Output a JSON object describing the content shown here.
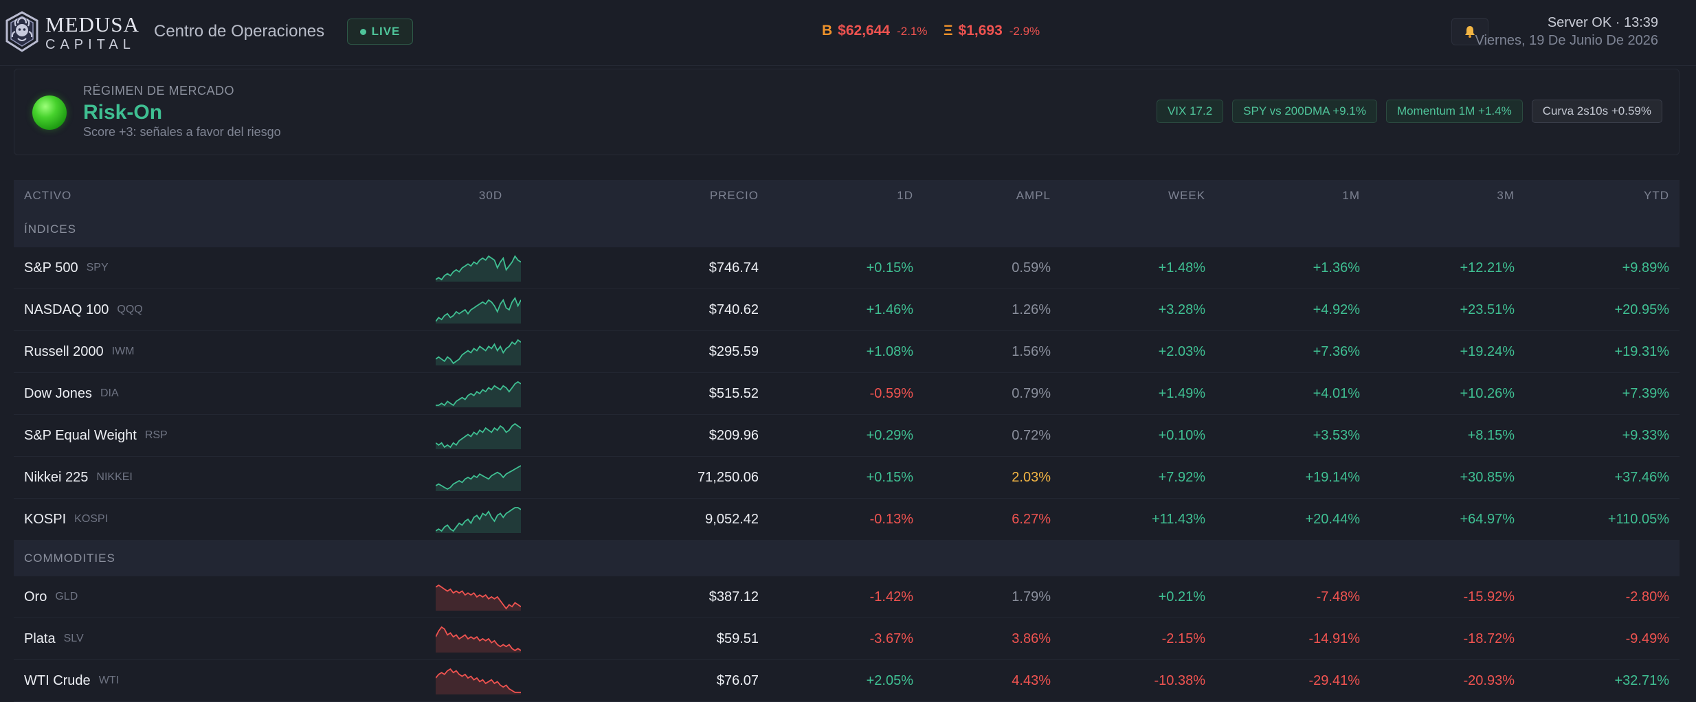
{
  "header": {
    "brand_name": "MEDUSA",
    "brand_sub": "CAPITAL",
    "title": "Centro de Operaciones",
    "live_label": "LIVE",
    "crypto": [
      {
        "symbol": "B",
        "price": "$62,644",
        "change": "-2.1%"
      },
      {
        "symbol": "Ξ",
        "price": "$1,693",
        "change": "-2.9%"
      }
    ],
    "bell_icon": "🔔",
    "server_status": "Server OK · 13:39",
    "date": "Viernes, 19 De Junio De 2026"
  },
  "regime": {
    "label": "RÉGIMEN DE MERCADO",
    "value": "Risk-On",
    "score": "Score +3: señales a favor del riesgo",
    "pills": [
      {
        "text": "VIX 17.2",
        "tone": "green"
      },
      {
        "text": "SPY vs 200DMA +9.1%",
        "tone": "green"
      },
      {
        "text": "Momentum 1M +1.4%",
        "tone": "green"
      },
      {
        "text": "Curva 2s10s +0.59%",
        "tone": "neutral"
      }
    ]
  },
  "table": {
    "columns": {
      "activo": "ACTIVO",
      "spark": "30D",
      "precio": "PRECIO",
      "d1": "1D",
      "ampl": "AMPL",
      "week": "WEEK",
      "m1": "1M",
      "m3": "3M",
      "ytd": "YTD"
    },
    "sections": [
      {
        "title": "ÍNDICES",
        "rows": [
          {
            "name": "S&P 500",
            "ticker": "SPY",
            "price": "$746.74",
            "d1": "+0.15%",
            "ampl": "0.59%",
            "week": "+1.48%",
            "m1": "+1.36%",
            "m3": "+12.21%",
            "ytd": "+9.89%",
            "trend": "up",
            "spark": [
              3,
              4,
              3,
              5,
              6,
              5,
              7,
              8,
              7,
              9,
              10,
              11,
              10,
              12,
              11,
              13,
              14,
              13,
              15,
              14,
              13,
              9,
              12,
              14,
              8,
              10,
              12,
              15,
              13,
              12
            ]
          },
          {
            "name": "NASDAQ 100",
            "ticker": "QQQ",
            "price": "$740.62",
            "d1": "+1.46%",
            "ampl": "1.26%",
            "week": "+3.28%",
            "m1": "+4.92%",
            "m3": "+23.51%",
            "ytd": "+20.95%",
            "trend": "up",
            "spark": [
              3,
              5,
              4,
              6,
              7,
              5,
              6,
              8,
              7,
              8,
              9,
              7,
              9,
              10,
              11,
              12,
              13,
              12,
              14,
              13,
              11,
              8,
              12,
              14,
              10,
              9,
              13,
              15,
              11,
              14
            ]
          },
          {
            "name": "Russell 2000",
            "ticker": "IWM",
            "price": "$295.59",
            "d1": "+1.08%",
            "ampl": "1.56%",
            "week": "+2.03%",
            "m1": "+7.36%",
            "m3": "+19.24%",
            "ytd": "+19.31%",
            "trend": "up",
            "spark": [
              6,
              7,
              6,
              5,
              7,
              6,
              4,
              5,
              6,
              8,
              9,
              10,
              9,
              11,
              10,
              12,
              11,
              10,
              12,
              11,
              13,
              10,
              12,
              9,
              11,
              12,
              14,
              13,
              15,
              14
            ]
          },
          {
            "name": "Dow Jones",
            "ticker": "DIA",
            "price": "$515.52",
            "d1": "-0.59%",
            "ampl": "0.79%",
            "week": "+1.49%",
            "m1": "+4.01%",
            "m3": "+10.26%",
            "ytd": "+7.39%",
            "trend": "up",
            "spark": [
              3,
              3,
              4,
              3,
              5,
              4,
              3,
              5,
              6,
              7,
              6,
              8,
              9,
              8,
              10,
              9,
              11,
              10,
              12,
              11,
              13,
              12,
              11,
              13,
              12,
              10,
              12,
              14,
              15,
              14
            ]
          },
          {
            "name": "S&P Equal Weight",
            "ticker": "RSP",
            "price": "$209.96",
            "d1": "+0.29%",
            "ampl": "0.72%",
            "week": "+0.10%",
            "m1": "+3.53%",
            "m3": "+8.15%",
            "ytd": "+9.33%",
            "trend": "up",
            "spark": [
              6,
              5,
              6,
              4,
              5,
              4,
              6,
              5,
              7,
              8,
              9,
              10,
              9,
              11,
              10,
              12,
              11,
              13,
              12,
              11,
              13,
              12,
              14,
              13,
              11,
              12,
              14,
              15,
              14,
              13
            ]
          },
          {
            "name": "Nikkei 225",
            "ticker": "NIKKEI",
            "price": "71,250.06",
            "d1": "+0.15%",
            "ampl": "2.03%",
            "week": "+7.92%",
            "m1": "+19.14%",
            "m3": "+30.85%",
            "ytd": "+37.46%",
            "trend": "up",
            "spark": [
              5,
              6,
              5,
              4,
              3,
              4,
              6,
              7,
              8,
              7,
              9,
              10,
              9,
              11,
              10,
              12,
              11,
              10,
              9,
              11,
              12,
              13,
              12,
              10,
              12,
              13,
              14,
              15,
              16,
              17
            ]
          },
          {
            "name": "KOSPI",
            "ticker": "KOSPI",
            "price": "9,052.42",
            "d1": "-0.13%",
            "ampl": "6.27%",
            "week": "+11.43%",
            "m1": "+20.44%",
            "m3": "+64.97%",
            "ytd": "+110.05%",
            "trend": "up",
            "spark": [
              5,
              6,
              5,
              7,
              8,
              6,
              5,
              7,
              9,
              8,
              10,
              11,
              9,
              12,
              13,
              11,
              14,
              13,
              15,
              12,
              10,
              13,
              14,
              12,
              14,
              15,
              16,
              17,
              17,
              16
            ]
          }
        ]
      },
      {
        "title": "COMMODITIES",
        "rows": [
          {
            "name": "Oro",
            "ticker": "GLD",
            "price": "$387.12",
            "d1": "-1.42%",
            "ampl": "1.79%",
            "week": "+0.21%",
            "m1": "-7.48%",
            "m3": "-15.92%",
            "ytd": "-2.80%",
            "trend": "down",
            "spark": [
              15,
              16,
              15,
              14,
              13,
              14,
              12,
              13,
              12,
              13,
              11,
              12,
              11,
              12,
              10,
              11,
              10,
              11,
              9,
              10,
              9,
              10,
              8,
              6,
              4,
              6,
              5,
              7,
              6,
              5
            ]
          },
          {
            "name": "Plata",
            "ticker": "SLV",
            "price": "$59.51",
            "d1": "-3.67%",
            "ampl": "3.86%",
            "week": "-2.15%",
            "m1": "-14.91%",
            "m3": "-18.72%",
            "ytd": "-9.49%",
            "trend": "down",
            "spark": [
              10,
              13,
              15,
              14,
              11,
              12,
              10,
              11,
              9,
              10,
              11,
              9,
              10,
              9,
              10,
              8,
              9,
              8,
              9,
              7,
              8,
              6,
              5,
              6,
              5,
              6,
              4,
              3,
              4,
              3
            ]
          },
          {
            "name": "WTI Crude",
            "ticker": "WTI",
            "price": "$76.07",
            "d1": "+2.05%",
            "ampl": "4.43%",
            "week": "-10.38%",
            "m1": "-29.41%",
            "m3": "-20.93%",
            "ytd": "+32.71%",
            "trend": "down",
            "spark": [
              10,
              12,
              13,
              12,
              14,
              15,
              13,
              14,
              12,
              11,
              12,
              10,
              11,
              9,
              10,
              8,
              9,
              7,
              8,
              9,
              7,
              8,
              6,
              5,
              6,
              4,
              3,
              2,
              2,
              2
            ]
          }
        ]
      }
    ]
  },
  "colors": {
    "background": "#1b1e27",
    "positive": "#3fbf92",
    "negative": "#ef5350",
    "warning": "#f2b544",
    "bitcoin": "#f0932b"
  },
  "icons": {
    "logo": "medusa-logo",
    "live": "live-dot-icon",
    "bell": "bell-icon",
    "regime": "green-orb-icon"
  }
}
